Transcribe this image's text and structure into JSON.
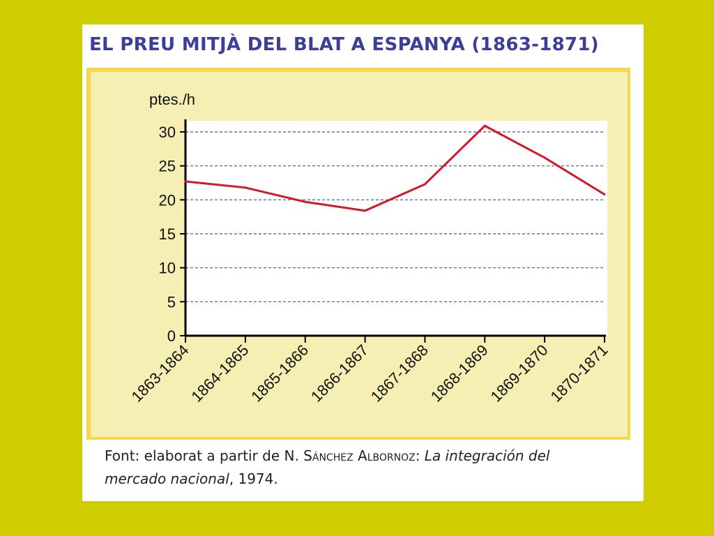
{
  "title": "EL PREU MITJÀ DEL BLAT A ESPANYA (1863-1871)",
  "source": {
    "prefix": "Font: elaborat a partir de N. ",
    "author": "Sánchez Albornoz",
    "colon": ": ",
    "work_part1": "La integración del",
    "work_part2": "mercado nacional",
    "suffix": ", 1974."
  },
  "colors": {
    "background": "#cfcc00",
    "panel": "#f5efb3",
    "panel_border": "#f2d84a",
    "title": "#3b3f9a",
    "line": "#d4182b",
    "grid": "#3a55a8"
  },
  "chart_data": {
    "type": "line",
    "title": "EL PREU MITJÀ DEL BLAT A ESPANYA (1863-1871)",
    "ylabel": "ptes./h",
    "xlabel": "",
    "categories": [
      "1863-1864",
      "1864-1865",
      "1865-1866",
      "1866-1867",
      "1867-1868",
      "1868-1869",
      "1869-1870",
      "1870-1871"
    ],
    "series": [
      {
        "values": [
          22.7,
          21.8,
          19.7,
          18.4,
          22.3,
          30.9,
          26.2,
          20.8
        ]
      }
    ],
    "ylim": [
      0,
      30
    ],
    "yticks": [
      0,
      5,
      10,
      15,
      20,
      25,
      30
    ],
    "grid": "horizontal-dashed"
  }
}
